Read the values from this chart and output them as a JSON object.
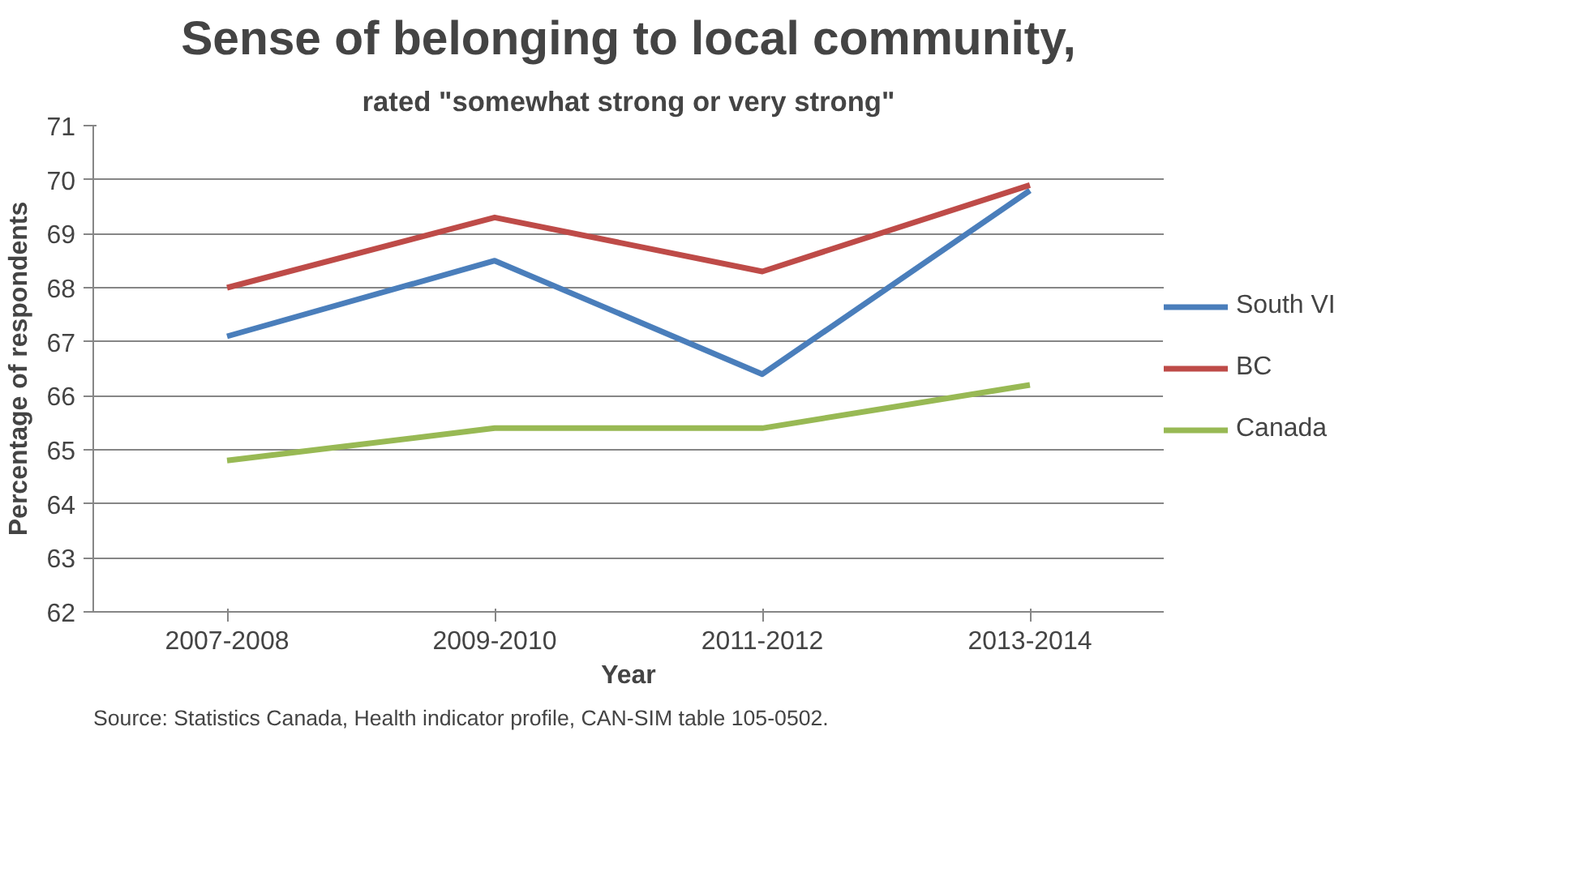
{
  "chart_data": {
    "type": "line",
    "title": "Sense of belonging to local community,",
    "subtitle": "rated \"somewhat strong or very strong\"",
    "xlabel": "Year",
    "ylabel": "Percentage of respondents",
    "categories": [
      "2007-2008",
      "2009-2010",
      "2011-2012",
      "2013-2014"
    ],
    "series": [
      {
        "name": "South VI",
        "color": "#4a7ebb",
        "values": [
          67.1,
          68.5,
          66.4,
          69.8
        ]
      },
      {
        "name": "BC",
        "color": "#be4b48",
        "values": [
          68.0,
          69.3,
          68.3,
          69.9
        ]
      },
      {
        "name": "Canada",
        "color": "#98b954",
        "values": [
          64.8,
          65.4,
          65.4,
          66.2
        ]
      }
    ],
    "ylim": [
      62,
      71
    ],
    "yticks": [
      62,
      63,
      64,
      65,
      66,
      67,
      68,
      69,
      70,
      71
    ],
    "grid": "y",
    "legend": "right",
    "marker": "none",
    "line_style": "solid",
    "annotations": [
      "Source: Statistics Canada, Health indicator profile, CAN-SIM table 105-0502."
    ]
  }
}
